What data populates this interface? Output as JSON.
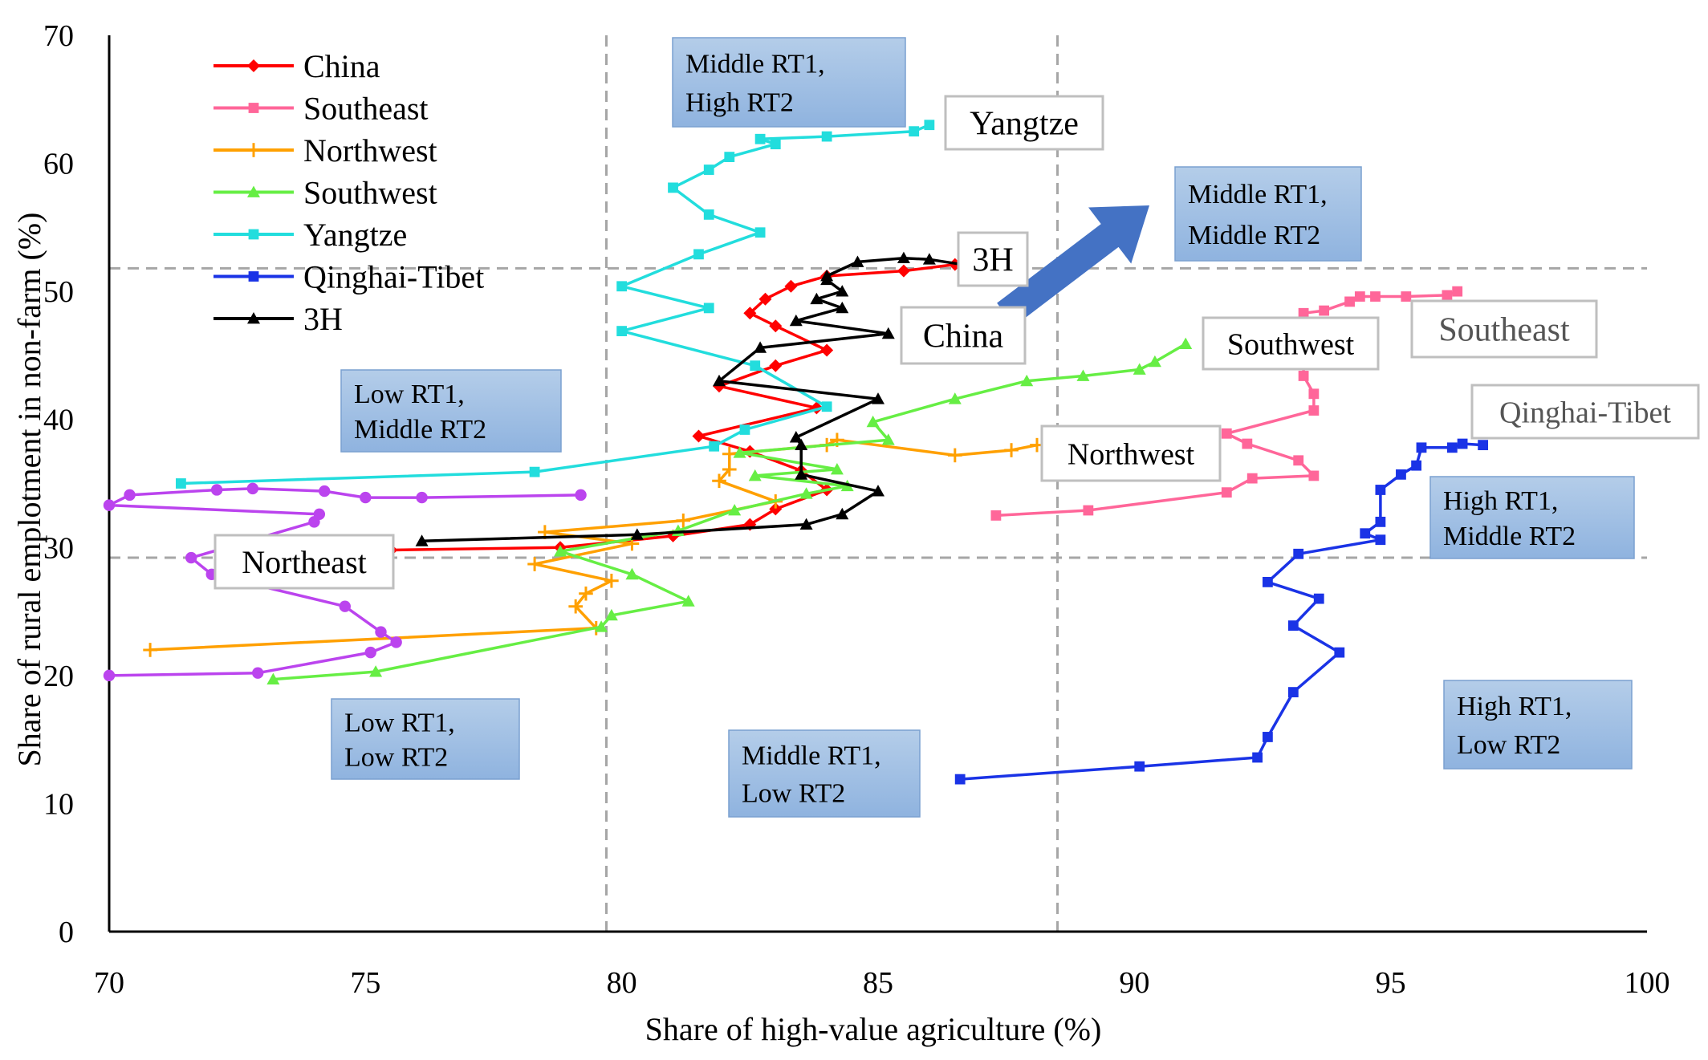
{
  "chart_data": {
    "type": "line",
    "xlabel": "Share of high-value agriculture (%)",
    "ylabel": "Share of rural emplotment in non-farm (%)",
    "xlim": [
      70,
      100
    ],
    "ylim": [
      0,
      70
    ],
    "xticks": [
      "70",
      "75",
      "80",
      "85",
      "90",
      "95",
      "100"
    ],
    "yticks": [
      "0",
      "10",
      "20",
      "30",
      "40",
      "50",
      "60",
      "70"
    ],
    "grid": false,
    "reference_lines": {
      "x": [
        79.7,
        88.5
      ],
      "y": [
        29.2,
        51.8
      ]
    },
    "legend_position": "top-left",
    "series": [
      {
        "name": "China",
        "color": "#ff0000",
        "marker": "diamond",
        "points": [
          [
            75.5,
            29.8
          ],
          [
            78.8,
            30.0
          ],
          [
            81.0,
            30.9
          ],
          [
            82.5,
            31.8
          ],
          [
            83.0,
            33.0
          ],
          [
            84.0,
            34.5
          ],
          [
            83.5,
            36.0
          ],
          [
            82.5,
            37.5
          ],
          [
            81.5,
            38.7
          ],
          [
            83.8,
            40.9
          ],
          [
            81.9,
            42.6
          ],
          [
            83.0,
            44.2
          ],
          [
            84.0,
            45.4
          ],
          [
            83.0,
            47.3
          ],
          [
            82.5,
            48.3
          ],
          [
            82.8,
            49.4
          ],
          [
            83.3,
            50.4
          ],
          [
            84.0,
            51.2
          ],
          [
            85.5,
            51.6
          ],
          [
            86.5,
            52.1
          ]
        ]
      },
      {
        "name": "Southeast",
        "color": "#ff6699",
        "marker": "square",
        "points": [
          [
            87.3,
            32.5
          ],
          [
            89.1,
            32.9
          ],
          [
            91.8,
            34.3
          ],
          [
            92.3,
            35.4
          ],
          [
            93.5,
            35.6
          ],
          [
            93.2,
            36.8
          ],
          [
            92.2,
            38.1
          ],
          [
            91.8,
            38.9
          ],
          [
            93.5,
            40.7
          ],
          [
            93.5,
            42.0
          ],
          [
            93.3,
            43.4
          ],
          [
            93.3,
            48.3
          ],
          [
            93.7,
            48.5
          ],
          [
            94.2,
            49.2
          ],
          [
            94.4,
            49.6
          ],
          [
            94.7,
            49.6
          ],
          [
            95.3,
            49.6
          ],
          [
            96.1,
            49.7
          ],
          [
            96.3,
            50.0
          ]
        ]
      },
      {
        "name": "Northwest",
        "color": "#ffa000",
        "marker": "plus",
        "points": [
          [
            70.8,
            22.0
          ],
          [
            79.5,
            23.7
          ],
          [
            79.1,
            25.4
          ],
          [
            79.3,
            26.4
          ],
          [
            79.8,
            27.4
          ],
          [
            78.3,
            28.7
          ],
          [
            80.2,
            30.3
          ],
          [
            78.5,
            31.2
          ],
          [
            81.2,
            32.1
          ],
          [
            83.0,
            33.6
          ],
          [
            81.9,
            35.2
          ],
          [
            82.1,
            36.1
          ],
          [
            82.1,
            37.3
          ],
          [
            84.0,
            38.0
          ],
          [
            84.2,
            38.4
          ],
          [
            86.5,
            37.2
          ],
          [
            87.6,
            37.6
          ],
          [
            88.1,
            38.0
          ]
        ]
      },
      {
        "name": "Southwest",
        "color": "#66ee44",
        "marker": "triangle",
        "points": [
          [
            73.2,
            19.7
          ],
          [
            75.2,
            20.3
          ],
          [
            79.6,
            23.8
          ],
          [
            79.8,
            24.7
          ],
          [
            81.3,
            25.8
          ],
          [
            80.2,
            27.9
          ],
          [
            78.8,
            29.7
          ],
          [
            81.1,
            31.3
          ],
          [
            82.2,
            32.9
          ],
          [
            83.6,
            34.2
          ],
          [
            84.4,
            34.8
          ],
          [
            82.6,
            35.6
          ],
          [
            84.2,
            36.1
          ],
          [
            82.3,
            37.4
          ],
          [
            85.2,
            38.4
          ],
          [
            84.9,
            39.8
          ],
          [
            86.5,
            41.6
          ],
          [
            87.9,
            43.0
          ],
          [
            89.0,
            43.4
          ],
          [
            90.1,
            43.9
          ],
          [
            90.4,
            44.5
          ],
          [
            91.0,
            45.9
          ]
        ]
      },
      {
        "name": "Yangtze",
        "color": "#22dddd",
        "marker": "square",
        "points": [
          [
            71.4,
            35.0
          ],
          [
            78.3,
            35.9
          ],
          [
            81.8,
            37.9
          ],
          [
            82.4,
            39.2
          ],
          [
            84.0,
            41.0
          ],
          [
            82.6,
            44.2
          ],
          [
            80.0,
            46.9
          ],
          [
            81.7,
            48.7
          ],
          [
            80.0,
            50.4
          ],
          [
            81.5,
            52.9
          ],
          [
            82.7,
            54.6
          ],
          [
            81.7,
            56.0
          ],
          [
            81.0,
            58.1
          ],
          [
            81.7,
            59.5
          ],
          [
            82.1,
            60.5
          ],
          [
            83.0,
            61.5
          ],
          [
            82.7,
            61.9
          ],
          [
            84.0,
            62.1
          ],
          [
            85.7,
            62.5
          ],
          [
            86.0,
            63.0
          ]
        ]
      },
      {
        "name": "Qinghai-Tibet",
        "color": "#1a33e6",
        "marker": "square",
        "points": [
          [
            86.6,
            11.9
          ],
          [
            90.1,
            12.9
          ],
          [
            92.4,
            13.6
          ],
          [
            92.6,
            15.2
          ],
          [
            93.1,
            18.7
          ],
          [
            94.0,
            21.8
          ],
          [
            93.1,
            23.9
          ],
          [
            93.6,
            26.0
          ],
          [
            92.6,
            27.3
          ],
          [
            93.2,
            29.5
          ],
          [
            94.8,
            30.6
          ],
          [
            94.5,
            31.1
          ],
          [
            94.8,
            32.0
          ],
          [
            94.8,
            34.5
          ],
          [
            95.2,
            35.7
          ],
          [
            95.5,
            36.4
          ],
          [
            95.6,
            37.8
          ],
          [
            96.2,
            37.8
          ],
          [
            96.4,
            38.1
          ],
          [
            96.8,
            38.0
          ]
        ]
      },
      {
        "name": "3H",
        "color": "#000000",
        "marker": "triangle",
        "points": [
          [
            76.1,
            30.5
          ],
          [
            80.3,
            31.0
          ],
          [
            83.6,
            31.8
          ],
          [
            84.3,
            32.6
          ],
          [
            85.0,
            34.4
          ],
          [
            83.5,
            35.7
          ],
          [
            83.5,
            38.0
          ],
          [
            83.4,
            38.6
          ],
          [
            85.0,
            41.6
          ],
          [
            81.9,
            43.0
          ],
          [
            82.7,
            45.6
          ],
          [
            85.2,
            46.7
          ],
          [
            83.4,
            47.7
          ],
          [
            84.3,
            48.7
          ],
          [
            83.8,
            49.4
          ],
          [
            84.3,
            50.0
          ],
          [
            84.0,
            50.9
          ],
          [
            84.0,
            51.2
          ],
          [
            84.6,
            52.3
          ],
          [
            85.5,
            52.6
          ],
          [
            86.0,
            52.5
          ],
          [
            86.8,
            52.0
          ]
        ]
      },
      {
        "name": "Northeast",
        "color": "#bb44ee",
        "marker": "circle",
        "points": [
          [
            70.0,
            20.0
          ],
          [
            72.9,
            20.2
          ],
          [
            75.1,
            21.8
          ],
          [
            75.6,
            22.6
          ],
          [
            75.3,
            23.4
          ],
          [
            74.6,
            25.4
          ],
          [
            72.0,
            27.9
          ],
          [
            71.6,
            29.2
          ],
          [
            74.0,
            32.0
          ],
          [
            74.1,
            32.6
          ],
          [
            70.0,
            33.3
          ],
          [
            70.4,
            34.1
          ],
          [
            72.1,
            34.5
          ],
          [
            72.8,
            34.6
          ],
          [
            74.2,
            34.4
          ],
          [
            75.0,
            33.9
          ],
          [
            76.1,
            33.9
          ],
          [
            79.2,
            34.1
          ]
        ]
      }
    ],
    "quadrant_labels": [
      {
        "id": "mid-high",
        "lines": [
          "Middle RT1,",
          "High RT2"
        ]
      },
      {
        "id": "mid-mid",
        "lines": [
          "Middle RT1,",
          "Middle RT2"
        ]
      },
      {
        "id": "low-mid",
        "lines": [
          "Low RT1,",
          "Middle RT2"
        ]
      },
      {
        "id": "high-mid",
        "lines": [
          "High RT1,",
          "Middle RT2"
        ]
      },
      {
        "id": "low-low",
        "lines": [
          "Low RT1,",
          "Low  RT2"
        ]
      },
      {
        "id": "mid-low",
        "lines": [
          "Middle RT1,",
          "Low RT2"
        ]
      },
      {
        "id": "high-low",
        "lines": [
          "High RT1,",
          "Low  RT2"
        ]
      }
    ],
    "annotations": [
      {
        "id": "yangtze",
        "text": "Yangtze",
        "color": "#000000"
      },
      {
        "id": "3h",
        "text": "3H",
        "color": "#000000"
      },
      {
        "id": "china",
        "text": "China",
        "color": "#000000"
      },
      {
        "id": "southwest",
        "text": "Southwest",
        "color": "#000000"
      },
      {
        "id": "southeast",
        "text": "Southeast",
        "color": "#555555"
      },
      {
        "id": "qinghai",
        "text": "Qinghai-Tibet",
        "color": "#555555"
      },
      {
        "id": "northwest",
        "text": "Northwest",
        "color": "#000000"
      },
      {
        "id": "northeast",
        "text": "Northeast",
        "color": "#000000"
      }
    ],
    "trend_arrow": {
      "color": "#4472c4"
    }
  }
}
